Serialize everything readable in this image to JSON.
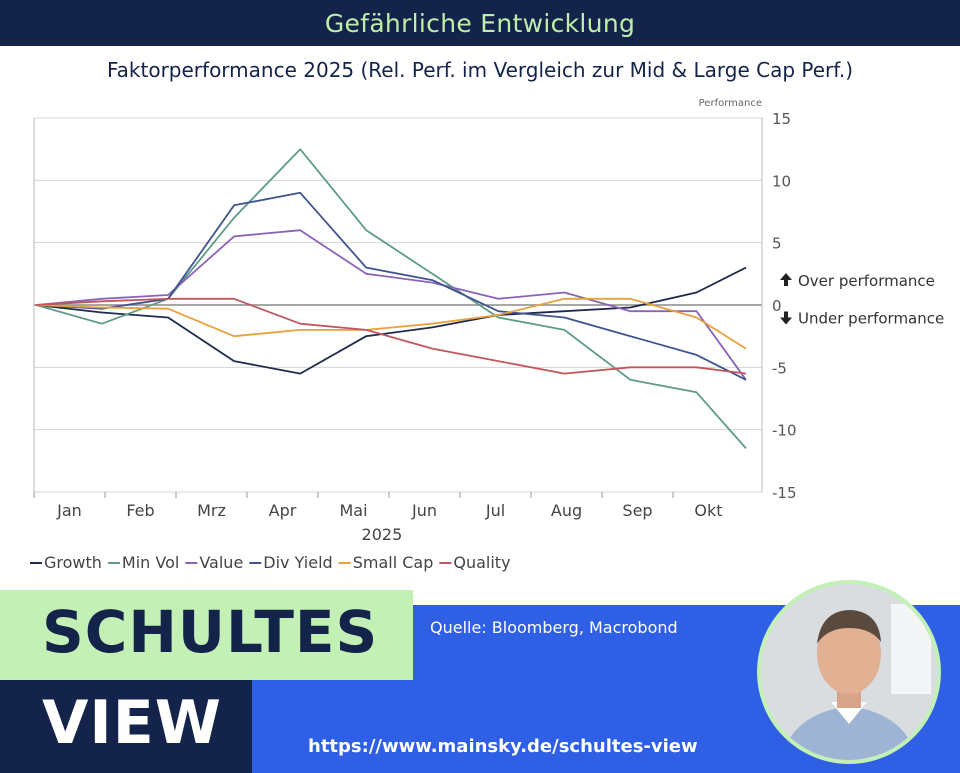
{
  "header": {
    "title": "Gefährliche Entwicklung"
  },
  "chart_data": {
    "type": "line",
    "title": "Faktorperformance 2025 (Rel. Perf. im Vergleich zur Mid & Large Cap Perf.)",
    "ylabel": "Performance",
    "xlabel": "2025",
    "ylim": [
      -15,
      15
    ],
    "yticks": [
      "15",
      "10",
      "5",
      "0",
      "-5",
      "-10",
      "-15"
    ],
    "months": [
      "Jan",
      "Feb",
      "Mrz",
      "Apr",
      "Mai",
      "Jun",
      "Jul",
      "Aug",
      "Sep",
      "Okt"
    ],
    "grid": true,
    "legend_position": "bottom-left",
    "annotations": {
      "over": "Over performance",
      "under": "Under performance"
    },
    "x": [
      0,
      4,
      8,
      12,
      16,
      20,
      24,
      28,
      32,
      36,
      40,
      43
    ],
    "series": [
      {
        "name": "Growth",
        "color": "#1f2a4d",
        "values": [
          0,
          -0.6,
          -1.0,
          -4.5,
          -5.5,
          -2.5,
          -1.8,
          -0.8,
          -0.5,
          -0.2,
          1.0,
          3.0
        ]
      },
      {
        "name": "Min Vol",
        "color": "#5f9b86",
        "values": [
          0,
          -1.5,
          0.5,
          7.0,
          12.5,
          6.0,
          2.5,
          -1.0,
          -2.0,
          -6.0,
          -7.0,
          -11.5
        ]
      },
      {
        "name": "Value",
        "color": "#8a63b8",
        "values": [
          0,
          0.5,
          0.8,
          5.5,
          6.0,
          2.5,
          1.8,
          0.5,
          1.0,
          -0.5,
          -0.5,
          -6.0
        ]
      },
      {
        "name": "Div Yield",
        "color": "#40548e",
        "values": [
          0,
          -0.3,
          0.5,
          8.0,
          9.0,
          3.0,
          2.0,
          -0.5,
          -1.0,
          -2.5,
          -4.0,
          -6.0
        ]
      },
      {
        "name": "Small Cap",
        "color": "#e8a13c",
        "values": [
          0,
          -0.2,
          -0.3,
          -2.5,
          -2.0,
          -2.0,
          -1.5,
          -0.8,
          0.5,
          0.5,
          -1.0,
          -3.5
        ]
      },
      {
        "name": "Quality",
        "color": "#c2565f",
        "values": [
          0,
          0.3,
          0.5,
          0.5,
          -1.5,
          -2.0,
          -3.5,
          -4.5,
          -5.5,
          -5.0,
          -5.0,
          -5.5
        ]
      }
    ]
  },
  "footer": {
    "brand_line1": "SCHULTES",
    "brand_line2": "VIEW",
    "source": "Quelle: Bloomberg, Macrobond",
    "url": "https://www.mainsky.de/schultes-view"
  },
  "icons": {
    "up": "arrow-up-icon",
    "down": "arrow-down-icon"
  }
}
